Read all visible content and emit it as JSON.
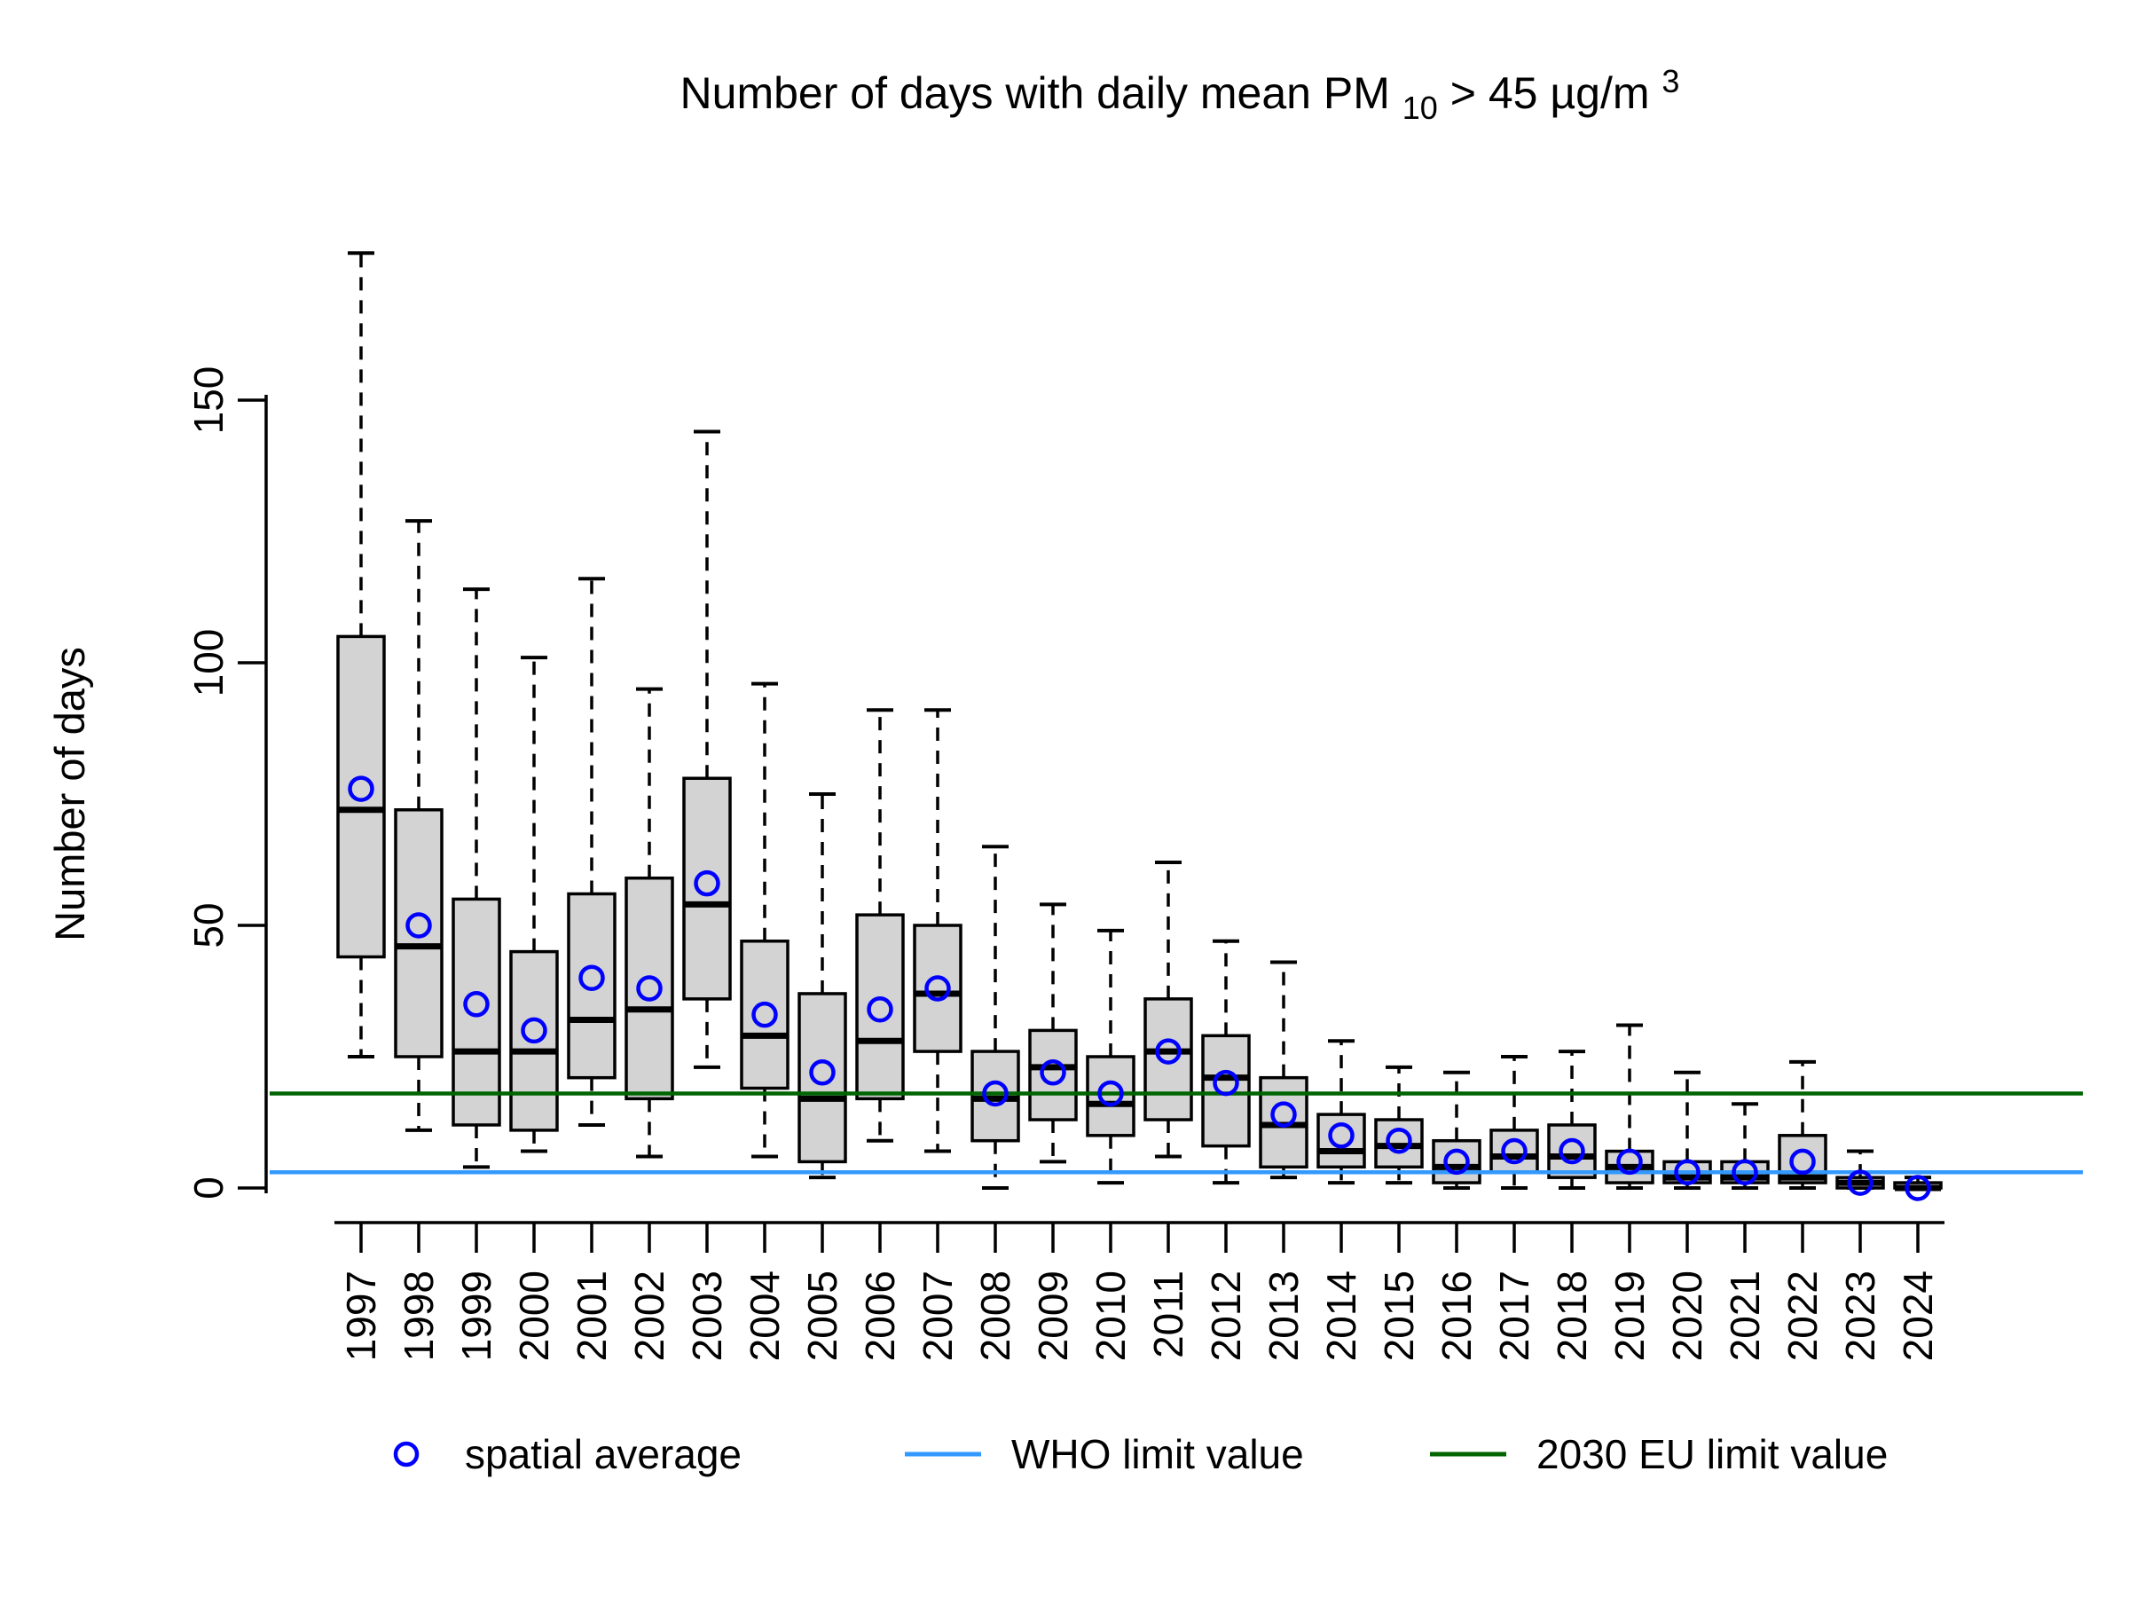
{
  "title": {
    "pre": "Number of days with daily mean PM",
    "sub": "10",
    "mid": " > 45 µg/m",
    "sup": "3"
  },
  "y_axis": {
    "label": "Number of days",
    "tick_labels": [
      "0",
      "50",
      "100",
      "150"
    ],
    "tick_values": [
      0,
      50,
      100,
      150
    ]
  },
  "x_axis": {
    "labels": [
      "1997",
      "1998",
      "1999",
      "2000",
      "2001",
      "2002",
      "2003",
      "2004",
      "2005",
      "2006",
      "2007",
      "2008",
      "2009",
      "2010",
      "2011",
      "2012",
      "2013",
      "2014",
      "2015",
      "2016",
      "2017",
      "2018",
      "2019",
      "2020",
      "2021",
      "2022",
      "2023",
      "2024"
    ]
  },
  "legend": {
    "items": [
      {
        "label": "spatial average",
        "symbol": "circle",
        "color": "#0000ff"
      },
      {
        "label": "WHO limit value",
        "symbol": "line",
        "color": "#3399ff"
      },
      {
        "label": "2030 EU limit value",
        "symbol": "line",
        "color": "#006400"
      }
    ]
  },
  "colors": {
    "box_fill": "#d3d3d3",
    "box_stroke": "#000000",
    "median": "#000000",
    "mean_point": "#0000ff",
    "who_line": "#3399ff",
    "eu_line": "#006400"
  },
  "chart_data": {
    "type": "boxplot",
    "title": "Number of days with daily mean PM10 > 45 µg/m³",
    "xlabel": "",
    "ylabel": "Number of days",
    "ylim": [
      0,
      180
    ],
    "grid": false,
    "legend_position": "bottom",
    "categories": [
      "1997",
      "1998",
      "1999",
      "2000",
      "2001",
      "2002",
      "2003",
      "2004",
      "2005",
      "2006",
      "2007",
      "2008",
      "2009",
      "2010",
      "2011",
      "2012",
      "2013",
      "2014",
      "2015",
      "2016",
      "2017",
      "2018",
      "2019",
      "2020",
      "2021",
      "2022",
      "2023",
      "2024"
    ],
    "boxes": [
      {
        "year": "1997",
        "low": 25,
        "q1": 44,
        "median": 72,
        "q3": 105,
        "high": 178,
        "mean": 76
      },
      {
        "year": "1998",
        "low": 11,
        "q1": 25,
        "median": 46,
        "q3": 72,
        "high": 127,
        "mean": 50
      },
      {
        "year": "1999",
        "low": 4,
        "q1": 12,
        "median": 26,
        "q3": 55,
        "high": 114,
        "mean": 35
      },
      {
        "year": "2000",
        "low": 7,
        "q1": 11,
        "median": 26,
        "q3": 45,
        "high": 101,
        "mean": 30
      },
      {
        "year": "2001",
        "low": 12,
        "q1": 21,
        "median": 32,
        "q3": 56,
        "high": 116,
        "mean": 40
      },
      {
        "year": "2002",
        "low": 6,
        "q1": 17,
        "median": 34,
        "q3": 59,
        "high": 95,
        "mean": 38
      },
      {
        "year": "2003",
        "low": 23,
        "q1": 36,
        "median": 54,
        "q3": 78,
        "high": 144,
        "mean": 58
      },
      {
        "year": "2004",
        "low": 6,
        "q1": 19,
        "median": 29,
        "q3": 47,
        "high": 96,
        "mean": 33
      },
      {
        "year": "2005",
        "low": 2,
        "q1": 5,
        "median": 17,
        "q3": 37,
        "high": 75,
        "mean": 22
      },
      {
        "year": "2006",
        "low": 9,
        "q1": 17,
        "median": 28,
        "q3": 52,
        "high": 91,
        "mean": 34
      },
      {
        "year": "2007",
        "low": 7,
        "q1": 26,
        "median": 37,
        "q3": 50,
        "high": 91,
        "mean": 38
      },
      {
        "year": "2008",
        "low": 0,
        "q1": 9,
        "median": 17,
        "q3": 26,
        "high": 65,
        "mean": 18
      },
      {
        "year": "2009",
        "low": 5,
        "q1": 13,
        "median": 23,
        "q3": 30,
        "high": 54,
        "mean": 22
      },
      {
        "year": "2010",
        "low": 1,
        "q1": 10,
        "median": 16,
        "q3": 25,
        "high": 49,
        "mean": 18
      },
      {
        "year": "2011",
        "low": 6,
        "q1": 13,
        "median": 26,
        "q3": 36,
        "high": 62,
        "mean": 26
      },
      {
        "year": "2012",
        "low": 1,
        "q1": 8,
        "median": 21,
        "q3": 29,
        "high": 47,
        "mean": 20
      },
      {
        "year": "2013",
        "low": 2,
        "q1": 4,
        "median": 12,
        "q3": 21,
        "high": 43,
        "mean": 14
      },
      {
        "year": "2014",
        "low": 1,
        "q1": 4,
        "median": 7,
        "q3": 14,
        "high": 28,
        "mean": 10
      },
      {
        "year": "2015",
        "low": 1,
        "q1": 4,
        "median": 8,
        "q3": 13,
        "high": 23,
        "mean": 9
      },
      {
        "year": "2016",
        "low": 0,
        "q1": 1,
        "median": 4,
        "q3": 9,
        "high": 22,
        "mean": 5
      },
      {
        "year": "2017",
        "low": 0,
        "q1": 3,
        "median": 6,
        "q3": 11,
        "high": 25,
        "mean": 7
      },
      {
        "year": "2018",
        "low": 0,
        "q1": 2,
        "median": 6,
        "q3": 12,
        "high": 26,
        "mean": 7
      },
      {
        "year": "2019",
        "low": 0,
        "q1": 1,
        "median": 4,
        "q3": 7,
        "high": 31,
        "mean": 5
      },
      {
        "year": "2020",
        "low": 0,
        "q1": 1,
        "median": 2,
        "q3": 5,
        "high": 22,
        "mean": 3
      },
      {
        "year": "2021",
        "low": 0,
        "q1": 1,
        "median": 2,
        "q3": 5,
        "high": 16,
        "mean": 3
      },
      {
        "year": "2022",
        "low": 0,
        "q1": 1,
        "median": 2,
        "q3": 10,
        "high": 24,
        "mean": 5
      },
      {
        "year": "2023",
        "low": 0,
        "q1": 0,
        "median": 1,
        "q3": 2,
        "high": 7,
        "mean": 1
      },
      {
        "year": "2024",
        "low": 0,
        "q1": 0,
        "median": 0,
        "q3": 1,
        "high": 2,
        "mean": 0
      }
    ],
    "reference_lines": [
      {
        "label": "WHO limit value",
        "value": 3,
        "color": "#3399ff"
      },
      {
        "label": "2030 EU limit value",
        "value": 18,
        "color": "#006400"
      }
    ]
  }
}
